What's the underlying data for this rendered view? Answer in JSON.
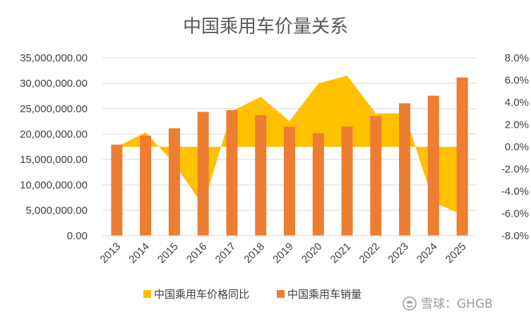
{
  "chart_data": {
    "type": "bar+area",
    "title": "中国乘用车价量关系",
    "categories": [
      "2013",
      "2014",
      "2015",
      "2016",
      "2017",
      "2018",
      "2019",
      "2020",
      "2021",
      "2022",
      "2023",
      "2024",
      "2025"
    ],
    "series": [
      {
        "name": "中国乘用车价格同比",
        "type": "area",
        "axis": "right",
        "color": "#FFC000",
        "values": [
          0.0,
          1.3,
          -1.5,
          -5.3,
          3.2,
          4.5,
          2.3,
          5.7,
          6.4,
          3.0,
          3.0,
          -5.0,
          -6.1
        ]
      },
      {
        "name": "中国乘用车销量",
        "type": "bar",
        "axis": "left",
        "color": "#ED7D31",
        "values": [
          17930000,
          19700000,
          21150000,
          24380000,
          24720000,
          23710000,
          21440000,
          20180000,
          21480000,
          23560000,
          26060000,
          27560000,
          31130000
        ]
      }
    ],
    "y_left": {
      "min": 0,
      "max": 35000000,
      "step": 5000000,
      "tick_labels": [
        "0.00",
        "5,000,000.00",
        "10,000,000.00",
        "15,000,000.00",
        "20,000,000.00",
        "25,000,000.00",
        "30,000,000.00",
        "35,000,000.00"
      ]
    },
    "y_right": {
      "min": -8,
      "max": 8,
      "step": 2,
      "tick_labels": [
        "-8.0%",
        "-6.0%",
        "-4.0%",
        "-2.0%",
        "0.0%",
        "2.0%",
        "4.0%",
        "6.0%",
        "8.0%"
      ]
    },
    "gridlines": true,
    "legend_position": "bottom"
  },
  "watermark": {
    "text": "雪球：GHGB",
    "icon": "snowball-logo-icon"
  }
}
